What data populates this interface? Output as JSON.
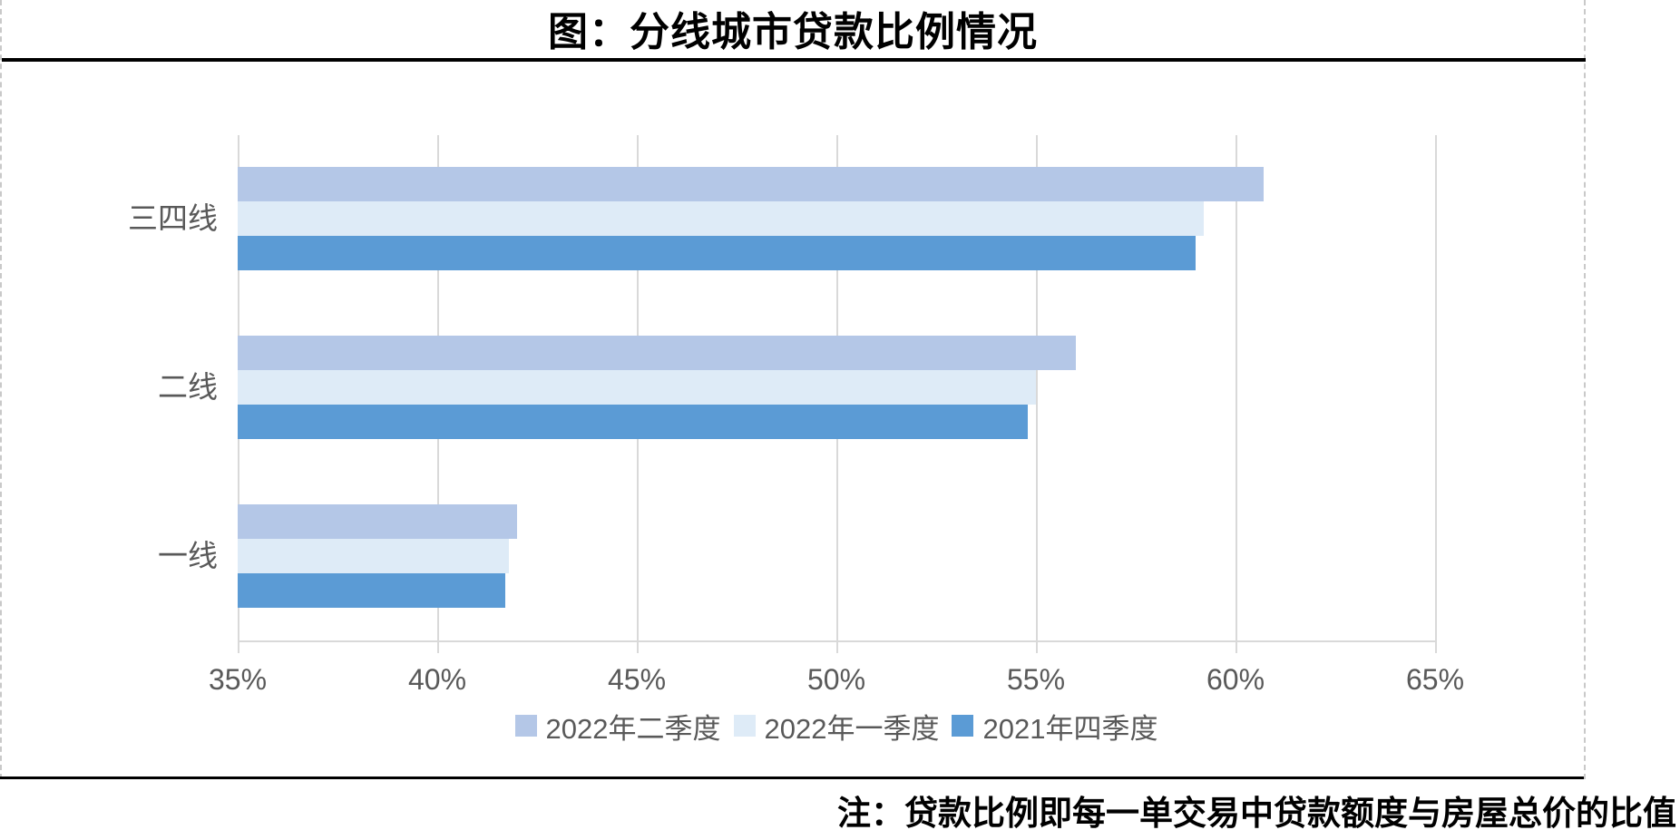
{
  "title": "图：分线城市贷款比例情况",
  "note": "注：贷款比例即每一单交易中贷款额度与房屋总价的比值",
  "colors": {
    "series_q2_2022": "#B4C7E7",
    "series_q1_2022": "#DEEBF7",
    "series_q4_2021": "#5B9BD5",
    "gridline": "#D9D9D9",
    "axis_text": "#595959",
    "title_text": "#000000",
    "frame_dash": "#C9C9C9",
    "rule": "#000000"
  },
  "chart_data": {
    "type": "bar",
    "orientation": "horizontal",
    "title": "图：分线城市贷款比例情况",
    "categories": [
      "三四线",
      "二线",
      "一线"
    ],
    "series": [
      {
        "name": "2022年二季度",
        "color": "#B4C7E7",
        "values": [
          60.7,
          56.0,
          42.0
        ]
      },
      {
        "name": "2022年一季度",
        "color": "#DEEBF7",
        "values": [
          59.2,
          55.0,
          41.8
        ]
      },
      {
        "name": "2021年四季度",
        "color": "#5B9BD5",
        "values": [
          59.0,
          54.8,
          41.7
        ]
      }
    ],
    "value_unit": "%",
    "x_axis": {
      "min": 35,
      "max": 65,
      "tick_step": 5,
      "tick_labels": [
        "35%",
        "40%",
        "45%",
        "50%",
        "55%",
        "60%",
        "65%"
      ]
    },
    "grid": true,
    "legend_position": "bottom",
    "annotation": "注：贷款比例即每一单交易中贷款额度与房屋总价的比值"
  }
}
